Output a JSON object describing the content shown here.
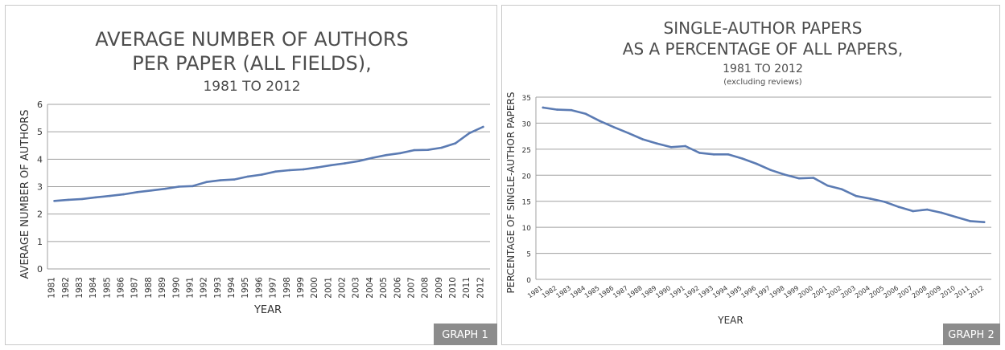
{
  "chart_data": [
    {
      "type": "line",
      "title_lines": [
        "AVERAGE NUMBER OF AUTHORS",
        "PER PAPER (ALL FIELDS),"
      ],
      "subtitle": "1981 TO 2012",
      "note": "",
      "xlabel": "YEAR",
      "ylabel": "AVERAGE NUMBER OF AUTHORS",
      "ylim": [
        0,
        6
      ],
      "yticks": [
        0,
        1,
        2,
        3,
        4,
        5,
        6
      ],
      "grid": true,
      "color": "#5b7bb3",
      "badge": "GRAPH 1",
      "categories": [
        "1981",
        "1982",
        "1983",
        "1984",
        "1985",
        "1986",
        "1987",
        "1988",
        "1989",
        "1990",
        "1991",
        "1992",
        "1993",
        "1994",
        "1995",
        "1996",
        "1997",
        "1998",
        "1999",
        "2000",
        "2001",
        "2002",
        "2003",
        "2004",
        "2005",
        "2006",
        "2007",
        "2008",
        "2009",
        "2010",
        "2011",
        "2012"
      ],
      "values": [
        2.48,
        2.52,
        2.55,
        2.61,
        2.66,
        2.72,
        2.8,
        2.86,
        2.92,
        3.0,
        3.02,
        3.17,
        3.23,
        3.26,
        3.37,
        3.44,
        3.55,
        3.6,
        3.63,
        3.7,
        3.78,
        3.85,
        3.93,
        4.05,
        4.15,
        4.22,
        4.33,
        4.34,
        4.42,
        4.58,
        4.95,
        5.18
      ]
    },
    {
      "type": "line",
      "title_lines": [
        "SINGLE-AUTHOR PAPERS",
        "AS A PERCENTAGE OF ALL PAPERS,"
      ],
      "subtitle": "1981 TO 2012",
      "note": "(excluding reviews)",
      "xlabel": "YEAR",
      "ylabel": "PERCENTAGE OF SINGLE-AUTHOR PAPERS",
      "ylim": [
        0,
        35
      ],
      "yticks": [
        0,
        5,
        10,
        15,
        20,
        25,
        30,
        35
      ],
      "grid": true,
      "color": "#5b7bb3",
      "badge": "GRAPH 2",
      "categories": [
        "1981",
        "1982",
        "1983",
        "1984",
        "1985",
        "1986",
        "1987",
        "1988",
        "1989",
        "1990",
        "1991",
        "1992",
        "1993",
        "1994",
        "1995",
        "1996",
        "1997",
        "1998",
        "1999",
        "2000",
        "2001",
        "2002",
        "2003",
        "2004",
        "2005",
        "2006",
        "2007",
        "2008",
        "2009",
        "2010",
        "2011",
        "2012"
      ],
      "values": [
        33.0,
        32.6,
        32.5,
        31.8,
        30.4,
        29.2,
        28.1,
        26.9,
        26.1,
        25.4,
        25.6,
        24.3,
        24.0,
        24.0,
        23.2,
        22.2,
        21.0,
        20.1,
        19.4,
        19.5,
        18.0,
        17.3,
        16.0,
        15.5,
        14.9,
        13.9,
        13.1,
        13.4,
        12.8,
        12.0,
        11.2,
        11.0
      ]
    }
  ]
}
